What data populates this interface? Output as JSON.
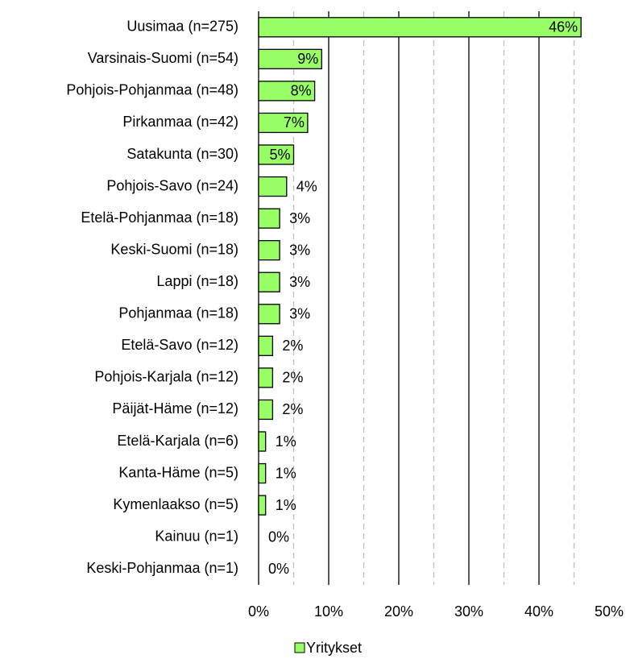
{
  "chart_data": {
    "type": "bar",
    "orientation": "horizontal",
    "categories": [
      "Uusimaa (n=275)",
      "Varsinais-Suomi (n=54)",
      "Pohjois-Pohjanmaa (n=48)",
      "Pirkanmaa (n=42)",
      "Satakunta (n=30)",
      "Pohjois-Savo (n=24)",
      "Etelä-Pohjanmaa (n=18)",
      "Keski-Suomi (n=18)",
      "Lappi (n=18)",
      "Pohjanmaa (n=18)",
      "Etelä-Savo (n=12)",
      "Pohjois-Karjala (n=12)",
      "Päijät-Häme (n=12)",
      "Etelä-Karjala (n=6)",
      "Kanta-Häme (n=5)",
      "Kymenlaakso (n=5)",
      "Kainuu (n=1)",
      "Keski-Pohjanmaa (n=1)"
    ],
    "series": [
      {
        "name": "Yritykset",
        "color": "#99ff66",
        "values": [
          46,
          9,
          8,
          7,
          5,
          4,
          3,
          3,
          3,
          3,
          2,
          2,
          2,
          1,
          1,
          1,
          0,
          0
        ],
        "value_labels": [
          "46%",
          "9%",
          "8%",
          "7%",
          "5%",
          "4%",
          "3%",
          "3%",
          "3%",
          "3%",
          "2%",
          "2%",
          "2%",
          "1%",
          "1%",
          "1%",
          "0%",
          "0%"
        ]
      }
    ],
    "xlim": [
      0,
      50
    ],
    "xticks": [
      {
        "value": 0,
        "label": "0%"
      },
      {
        "value": 10,
        "label": "10%"
      },
      {
        "value": 20,
        "label": "20%"
      },
      {
        "value": 30,
        "label": "30%"
      },
      {
        "value": 40,
        "label": "40%"
      },
      {
        "value": 50,
        "label": "50%"
      }
    ],
    "xminor": [
      5,
      15,
      25,
      35,
      45
    ],
    "grid": true,
    "legend": "bottom"
  }
}
